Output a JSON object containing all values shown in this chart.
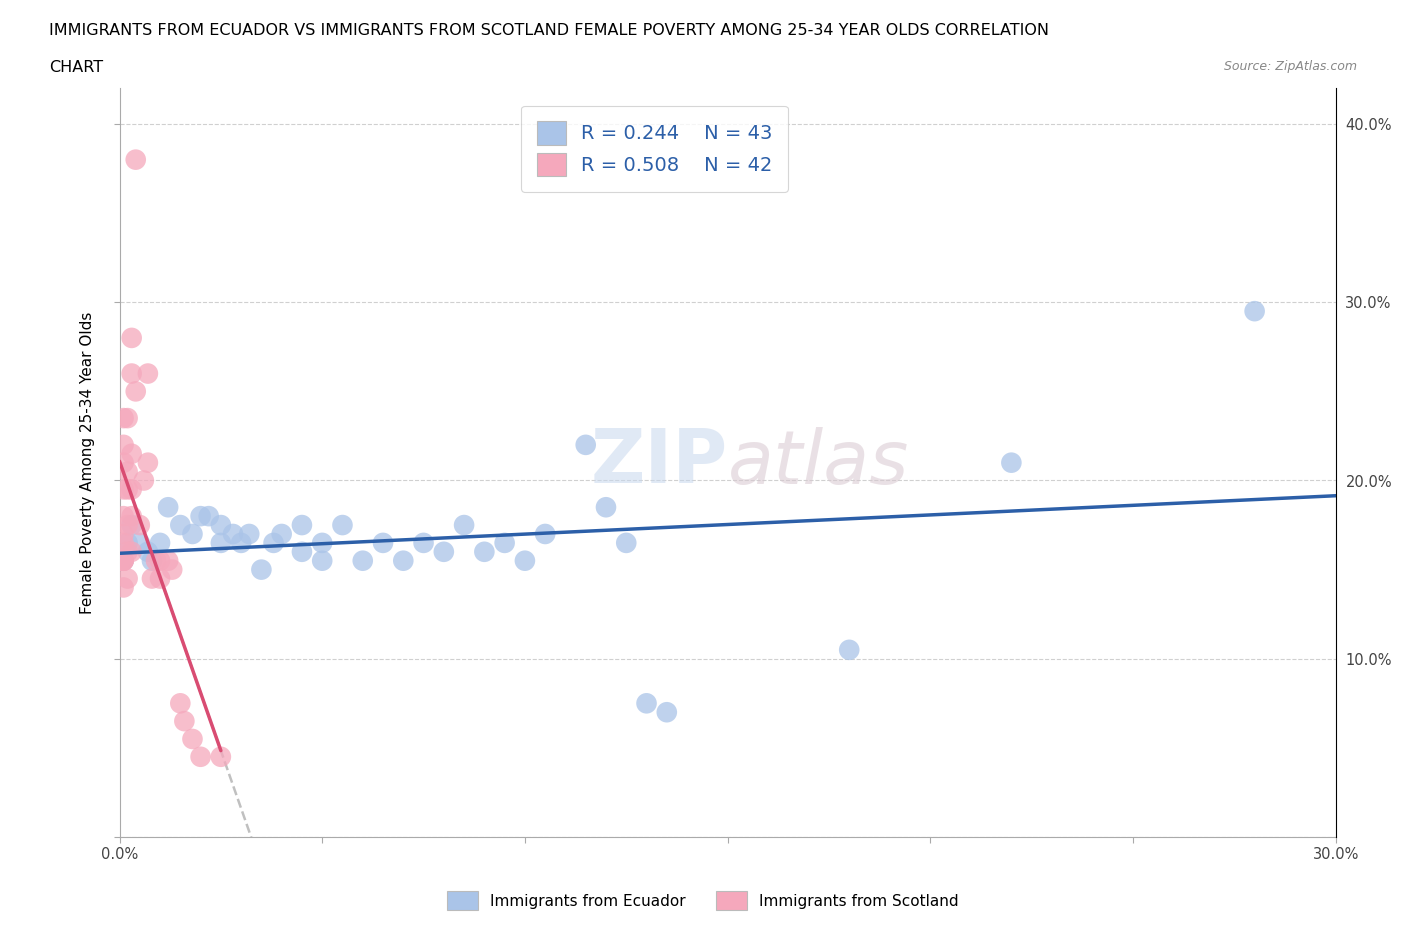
{
  "title_line1": "IMMIGRANTS FROM ECUADOR VS IMMIGRANTS FROM SCOTLAND FEMALE POVERTY AMONG 25-34 YEAR OLDS CORRELATION",
  "title_line2": "CHART",
  "source": "Source: ZipAtlas.com",
  "ylabel": "Female Poverty Among 25-34 Year Olds",
  "xlim": [
    0.0,
    0.3
  ],
  "ylim": [
    0.0,
    0.42
  ],
  "xticks": [
    0.0,
    0.05,
    0.1,
    0.15,
    0.2,
    0.25,
    0.3
  ],
  "xticklabels": [
    "0.0%",
    "",
    "",
    "",
    "",
    "",
    "30.0%"
  ],
  "yticks": [
    0.0,
    0.1,
    0.2,
    0.3,
    0.4
  ],
  "yticklabels": [
    "",
    "10.0%",
    "20.0%",
    "30.0%",
    "40.0%"
  ],
  "ecuador_color": "#aac4e8",
  "scotland_color": "#f5a8bc",
  "ecuador_R": 0.244,
  "ecuador_N": 43,
  "scotland_R": 0.508,
  "scotland_N": 42,
  "ecuador_line_color": "#2c5fa8",
  "scotland_line_color": "#d94c72",
  "watermark": "ZIPAtlas",
  "legend_text_color": "#2c5fa8",
  "ecuador_scatter": [
    [
      0.001,
      0.155
    ],
    [
      0.002,
      0.165
    ],
    [
      0.003,
      0.175
    ],
    [
      0.005,
      0.165
    ],
    [
      0.007,
      0.16
    ],
    [
      0.008,
      0.155
    ],
    [
      0.01,
      0.165
    ],
    [
      0.012,
      0.185
    ],
    [
      0.015,
      0.175
    ],
    [
      0.018,
      0.17
    ],
    [
      0.02,
      0.18
    ],
    [
      0.022,
      0.18
    ],
    [
      0.025,
      0.165
    ],
    [
      0.025,
      0.175
    ],
    [
      0.028,
      0.17
    ],
    [
      0.03,
      0.165
    ],
    [
      0.032,
      0.17
    ],
    [
      0.035,
      0.15
    ],
    [
      0.038,
      0.165
    ],
    [
      0.04,
      0.17
    ],
    [
      0.045,
      0.175
    ],
    [
      0.045,
      0.16
    ],
    [
      0.05,
      0.155
    ],
    [
      0.05,
      0.165
    ],
    [
      0.055,
      0.175
    ],
    [
      0.06,
      0.155
    ],
    [
      0.065,
      0.165
    ],
    [
      0.07,
      0.155
    ],
    [
      0.075,
      0.165
    ],
    [
      0.08,
      0.16
    ],
    [
      0.085,
      0.175
    ],
    [
      0.09,
      0.16
    ],
    [
      0.095,
      0.165
    ],
    [
      0.1,
      0.155
    ],
    [
      0.105,
      0.17
    ],
    [
      0.115,
      0.22
    ],
    [
      0.12,
      0.185
    ],
    [
      0.125,
      0.165
    ],
    [
      0.13,
      0.075
    ],
    [
      0.135,
      0.07
    ],
    [
      0.18,
      0.105
    ],
    [
      0.22,
      0.21
    ],
    [
      0.28,
      0.295
    ]
  ],
  "scotland_scatter": [
    [
      0.0,
      0.155
    ],
    [
      0.0,
      0.155
    ],
    [
      0.001,
      0.155
    ],
    [
      0.001,
      0.155
    ],
    [
      0.001,
      0.14
    ],
    [
      0.001,
      0.155
    ],
    [
      0.001,
      0.165
    ],
    [
      0.001,
      0.17
    ],
    [
      0.001,
      0.18
    ],
    [
      0.001,
      0.195
    ],
    [
      0.001,
      0.21
    ],
    [
      0.001,
      0.22
    ],
    [
      0.001,
      0.235
    ],
    [
      0.002,
      0.145
    ],
    [
      0.002,
      0.16
    ],
    [
      0.002,
      0.175
    ],
    [
      0.002,
      0.195
    ],
    [
      0.002,
      0.205
    ],
    [
      0.002,
      0.235
    ],
    [
      0.003,
      0.16
    ],
    [
      0.003,
      0.18
    ],
    [
      0.003,
      0.195
    ],
    [
      0.003,
      0.215
    ],
    [
      0.003,
      0.26
    ],
    [
      0.003,
      0.28
    ],
    [
      0.004,
      0.25
    ],
    [
      0.004,
      0.38
    ],
    [
      0.005,
      0.175
    ],
    [
      0.006,
      0.2
    ],
    [
      0.007,
      0.21
    ],
    [
      0.007,
      0.26
    ],
    [
      0.008,
      0.145
    ],
    [
      0.009,
      0.155
    ],
    [
      0.01,
      0.145
    ],
    [
      0.01,
      0.155
    ],
    [
      0.012,
      0.155
    ],
    [
      0.013,
      0.15
    ],
    [
      0.015,
      0.075
    ],
    [
      0.016,
      0.065
    ],
    [
      0.018,
      0.055
    ],
    [
      0.02,
      0.045
    ],
    [
      0.025,
      0.045
    ]
  ]
}
